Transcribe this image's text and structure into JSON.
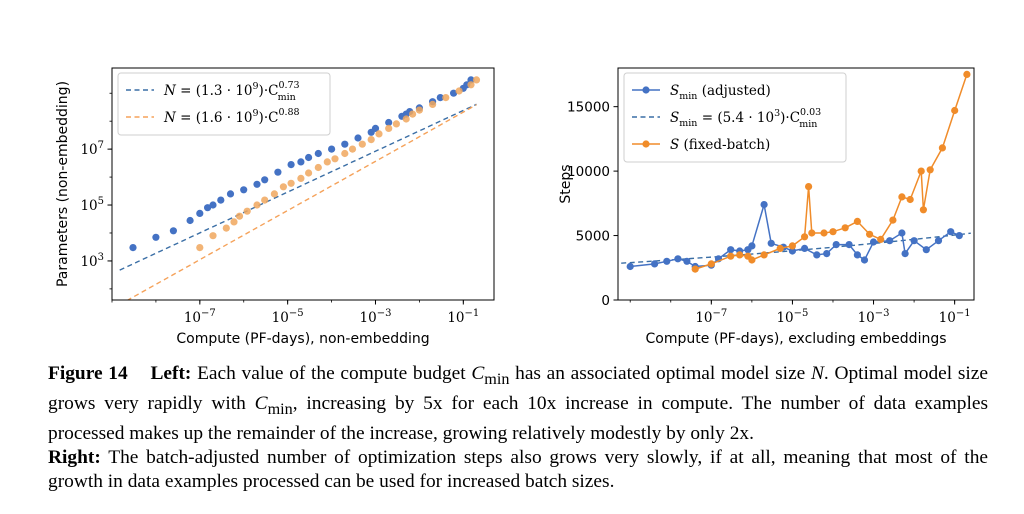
{
  "chart_data": [
    {
      "type": "scatter",
      "xscale": "log",
      "yscale": "log",
      "xlim": [
        1e-09,
        0.5
      ],
      "ylim": [
        40,
        8000000000
      ],
      "xlabel": "Compute (PF-days), non-embedding",
      "ylabel": "Parameters (non-embedding)",
      "xticks": [
        {
          "value": 1e-07,
          "base": "10",
          "exp": "−7"
        },
        {
          "value": 1e-05,
          "base": "10",
          "exp": "−5"
        },
        {
          "value": 0.001,
          "base": "10",
          "exp": "−3"
        },
        {
          "value": 0.1,
          "base": "10",
          "exp": "−1"
        }
      ],
      "yticks": [
        {
          "value": 1000,
          "base": "10",
          "exp": "3"
        },
        {
          "value": 100000,
          "base": "10",
          "exp": "5"
        },
        {
          "value": 10000000,
          "base": "10",
          "exp": "7"
        }
      ],
      "legend_position": "top-left",
      "legend": [
        {
          "lhs": "N",
          "rhs": " = (1.3 · 10",
          "sup1": "9",
          "mid": ")·C",
          "sup2": "0.73",
          "sub2": "min",
          "color": "#3a6ea5"
        },
        {
          "lhs": "N",
          "rhs": " = (1.6 · 10",
          "sup1": "9",
          "mid": ")·C",
          "sup2": "0.88",
          "sub2": "",
          "color": "#f5a25a"
        }
      ],
      "series": [
        {
          "color": "#4472c4",
          "points": [
            [
              3e-09,
              3000
            ],
            [
              1e-08,
              7000
            ],
            [
              2.5e-08,
              12000
            ],
            [
              6e-08,
              28000
            ],
            [
              1e-07,
              50000
            ],
            [
              1.5e-07,
              80000
            ],
            [
              2e-07,
              100000
            ],
            [
              3e-07,
              150000
            ],
            [
              5e-07,
              250000
            ],
            [
              1e-06,
              350000
            ],
            [
              2e-06,
              550000
            ],
            [
              3e-06,
              800000
            ],
            [
              6e-06,
              1500000
            ],
            [
              1.2e-05,
              2800000
            ],
            [
              2e-05,
              3500000
            ],
            [
              3e-05,
              5000000
            ],
            [
              5e-05,
              7000000
            ],
            [
              0.0001,
              10000000
            ],
            [
              0.0002,
              15000000
            ],
            [
              0.0004,
              25000000
            ],
            [
              0.0008,
              40000000
            ],
            [
              0.001,
              55000000
            ],
            [
              0.002,
              90000000
            ],
            [
              0.004,
              150000000
            ],
            [
              0.005,
              180000000
            ],
            [
              0.006,
              220000000
            ],
            [
              0.01,
              300000000
            ],
            [
              0.02,
              500000000
            ],
            [
              0.03,
              700000000
            ],
            [
              0.06,
              1000000000
            ],
            [
              0.1,
              1500000000
            ],
            [
              0.12,
              2000000000
            ],
            [
              0.15,
              3000000000
            ]
          ]
        },
        {
          "color": "#f0a75e",
          "points": [
            [
              1e-07,
              3000
            ],
            [
              2e-07,
              8000
            ],
            [
              4e-07,
              15000
            ],
            [
              6e-07,
              25000
            ],
            [
              8e-07,
              40000
            ],
            [
              1.2e-06,
              60000
            ],
            [
              2e-06,
              100000
            ],
            [
              3e-06,
              150000
            ],
            [
              5e-06,
              250000
            ],
            [
              8e-06,
              450000
            ],
            [
              1.2e-05,
              600000
            ],
            [
              2e-05,
              900000
            ],
            [
              3e-05,
              1400000
            ],
            [
              5e-05,
              2200000
            ],
            [
              8e-05,
              3500000
            ],
            [
              0.00012,
              4500000
            ],
            [
              0.0002,
              7000000
            ],
            [
              0.0003,
              10000000
            ],
            [
              0.0005,
              15000000
            ],
            [
              0.0008,
              22000000
            ],
            [
              0.0012,
              35000000
            ],
            [
              0.002,
              55000000
            ],
            [
              0.003,
              80000000
            ],
            [
              0.005,
              120000000
            ],
            [
              0.007,
              180000000
            ],
            [
              0.01,
              250000000
            ],
            [
              0.02,
              400000000
            ],
            [
              0.04,
              700000000
            ],
            [
              0.08,
              1200000000
            ],
            [
              0.15,
              2000000000
            ],
            [
              0.2,
              3000000000
            ]
          ]
        }
      ],
      "fits": [
        {
          "color": "#3a6ea5",
          "coef": 1300000000,
          "exp": 0.73,
          "x_range": [
            1.5e-09,
            0.2
          ]
        },
        {
          "color": "#f5a25a",
          "coef": 1600000000,
          "exp": 0.88,
          "x_range": [
            1e-09,
            0.2
          ]
        }
      ]
    },
    {
      "type": "line",
      "xscale": "log",
      "yscale": "linear",
      "xlim": [
        5e-10,
        0.3
      ],
      "ylim": [
        0,
        18000
      ],
      "xlabel": "Compute (PF-days), excluding embeddings",
      "ylabel": "Steps",
      "xticks": [
        {
          "value": 1e-07,
          "base": "10",
          "exp": "−7"
        },
        {
          "value": 1e-05,
          "base": "10",
          "exp": "−5"
        },
        {
          "value": 0.001,
          "base": "10",
          "exp": "−3"
        },
        {
          "value": 0.1,
          "base": "10",
          "exp": "−1"
        }
      ],
      "yticks": [
        {
          "value": 0,
          "label": "0"
        },
        {
          "value": 5000,
          "label": "5000"
        },
        {
          "value": 10000,
          "label": "10000"
        },
        {
          "value": 15000,
          "label": "15000"
        }
      ],
      "legend_position": "top-left",
      "legend": [
        {
          "kind": "line-marker",
          "sym": "S",
          "sub": "min",
          "tail": " (adjusted)",
          "color": "#4472c4"
        },
        {
          "kind": "dashed",
          "sym": "S",
          "sub": "min",
          "tail": " = (5.4 · 10",
          "sup1": "3",
          "mid": ")·C",
          "sup2": "0.03",
          "sub2": "min",
          "color": "#3a6ea5"
        },
        {
          "kind": "line-marker",
          "sym": "S",
          "sub": "",
          "tail": " (fixed-batch)",
          "color": "#f08c2a"
        }
      ],
      "series": [
        {
          "name": "S_min (adjusted)",
          "color": "#4472c4",
          "points": [
            [
              1e-09,
              2600
            ],
            [
              4e-09,
              2800
            ],
            [
              8e-09,
              3000
            ],
            [
              1.5e-08,
              3200
            ],
            [
              2.5e-08,
              3000
            ],
            [
              4e-08,
              2600
            ],
            [
              1e-07,
              2700
            ],
            [
              1.5e-07,
              3200
            ],
            [
              3e-07,
              3900
            ],
            [
              5e-07,
              3800
            ],
            [
              8e-07,
              3900
            ],
            [
              1e-06,
              4200
            ],
            [
              2e-06,
              7400
            ],
            [
              3e-06,
              4400
            ],
            [
              6e-06,
              4100
            ],
            [
              1e-05,
              3800
            ],
            [
              2e-05,
              4000
            ],
            [
              4e-05,
              3500
            ],
            [
              7e-05,
              3600
            ],
            [
              0.00012,
              4300
            ],
            [
              0.00025,
              4300
            ],
            [
              0.0004,
              3500
            ],
            [
              0.0006,
              3100
            ],
            [
              0.001,
              4500
            ],
            [
              0.0025,
              4600
            ],
            [
              0.005,
              5200
            ],
            [
              0.006,
              3600
            ],
            [
              0.01,
              4600
            ],
            [
              0.02,
              3900
            ],
            [
              0.04,
              4600
            ],
            [
              0.08,
              5300
            ],
            [
              0.13,
              5000
            ]
          ]
        },
        {
          "name": "S (fixed-batch)",
          "color": "#f08c2a",
          "points": [
            [
              4e-08,
              2400
            ],
            [
              1e-07,
              2800
            ],
            [
              3e-07,
              3400
            ],
            [
              5e-07,
              3500
            ],
            [
              8e-07,
              3400
            ],
            [
              1e-06,
              3100
            ],
            [
              2e-06,
              3500
            ],
            [
              5e-06,
              4000
            ],
            [
              1e-05,
              4200
            ],
            [
              2e-05,
              4900
            ],
            [
              2.5e-05,
              8800
            ],
            [
              3e-05,
              5200
            ],
            [
              6e-05,
              5200
            ],
            [
              0.0001,
              5300
            ],
            [
              0.0002,
              5600
            ],
            [
              0.0004,
              6100
            ],
            [
              0.0008,
              5100
            ],
            [
              0.0015,
              4700
            ],
            [
              0.003,
              6200
            ],
            [
              0.005,
              8000
            ],
            [
              0.008,
              7800
            ],
            [
              0.015,
              10000
            ],
            [
              0.017,
              7000
            ],
            [
              0.025,
              10100
            ],
            [
              0.05,
              11800
            ],
            [
              0.1,
              14700
            ],
            [
              0.2,
              17500
            ]
          ]
        }
      ],
      "fits": [
        {
          "color": "#3a6ea5",
          "coef": 5400,
          "exp": 0.03,
          "x_range": [
            6e-10,
            0.25
          ]
        }
      ]
    }
  ],
  "caption": {
    "fig_label": "Figure 14",
    "left_label": "Left:",
    "left_pre": " Each value of the compute budget ",
    "cmin_sym": "C",
    "cmin_sub": "min",
    "left_mid": " has an associated optimal model size ",
    "n_sym": "N",
    "left_mid2": ". Optimal model size grows very rapidly with ",
    "left_post": ", increasing by 5x for each 10x increase in compute. The number of data examples processed makes up the remainder of the increase, growing relatively modestly by only 2x.",
    "right_label": "Right:",
    "right_text": " The batch-adjusted number of optimization steps also grows very slowly, if at all, meaning that most of the growth in data examples processed can be used for increased batch sizes."
  }
}
